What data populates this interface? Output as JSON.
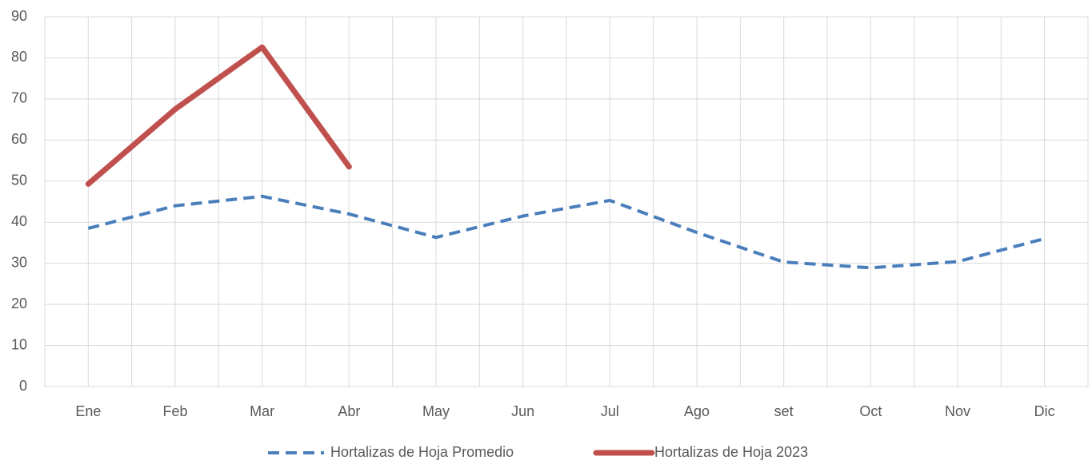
{
  "chart_data": {
    "type": "line",
    "categories": [
      "Ene",
      "Feb",
      "Mar",
      "Abr",
      "May",
      "Jun",
      "Jul",
      "Ago",
      "set",
      "Oct",
      "Nov",
      "Dic"
    ],
    "series": [
      {
        "name": "Hortalizas de Hoja Promedio",
        "color": "#4a7ebb",
        "dashed": true,
        "values": [
          38.5,
          44,
          46.3,
          42,
          36.3,
          41.5,
          45.3,
          37.5,
          30.3,
          28.9,
          30.4,
          36
        ]
      },
      {
        "name": "Hortalizas de Hoja 2023",
        "color": "#c0504d",
        "dashed": false,
        "values": [
          49.3,
          67.5,
          82.6,
          53.5,
          null,
          null,
          null,
          null,
          null,
          null,
          null,
          null
        ]
      }
    ],
    "ylim": [
      0,
      90
    ],
    "yticks": [
      0,
      10,
      20,
      30,
      40,
      50,
      60,
      70,
      80,
      90
    ],
    "grid": true,
    "legend": "bottom"
  }
}
